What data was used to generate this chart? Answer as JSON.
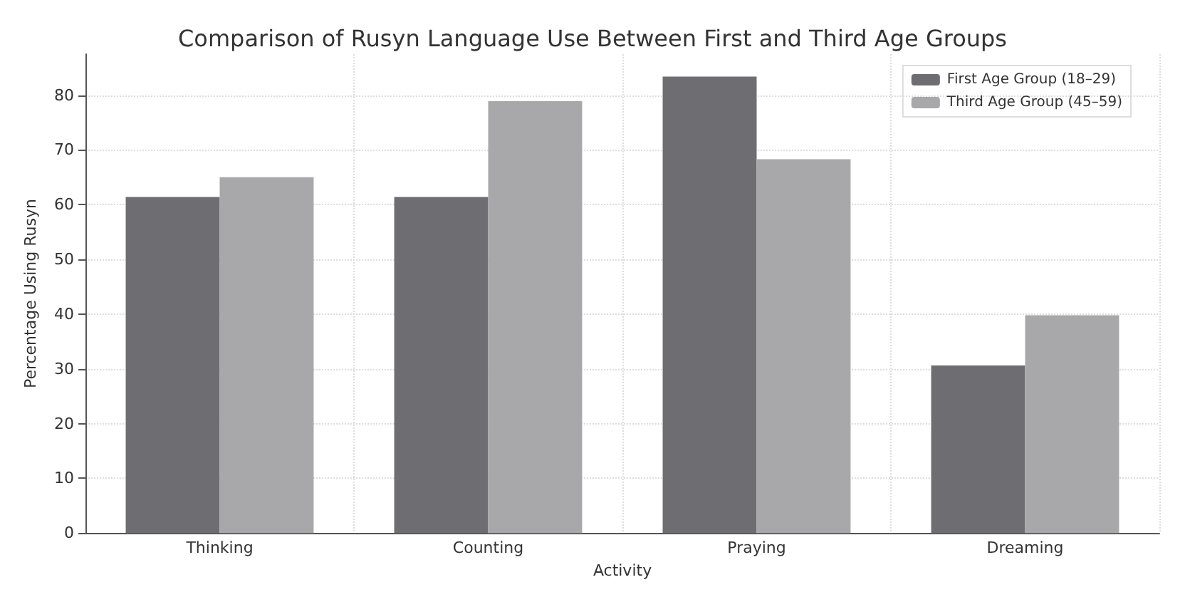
{
  "chart_data": {
    "type": "bar",
    "title": "Comparison of Rusyn Language Use Between First and Third Age Groups",
    "xlabel": "Activity",
    "ylabel": "Percentage Using Rusyn",
    "categories": [
      "Thinking",
      "Counting",
      "Praying",
      "Dreaming"
    ],
    "series": [
      {
        "name": "First Age Group (18–29)",
        "color": "#6e6e72",
        "values": [
          61.4,
          61.4,
          83.4,
          30.6
        ]
      },
      {
        "name": "Third Age Group (45–59)",
        "color": "#a8a8aa",
        "values": [
          65.0,
          78.9,
          68.3,
          39.8
        ]
      }
    ],
    "ylim": [
      0,
      87.5
    ],
    "yticks": [
      0,
      10,
      20,
      30,
      40,
      50,
      60,
      70,
      80
    ],
    "grid": true,
    "legend": "top right"
  }
}
